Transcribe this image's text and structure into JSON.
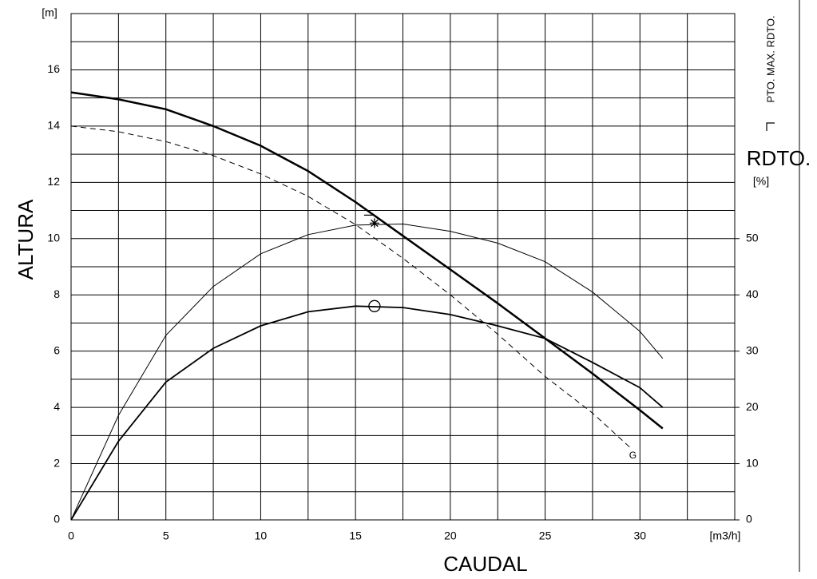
{
  "chart_data": {
    "type": "line",
    "xlabel": "CAUDAL",
    "xunit": "[m3/h]",
    "ylabel": "ALTURA",
    "yunit": "[m]",
    "y2label": "RDTO.",
    "y2unit": "[%]",
    "legend_text": "PTO. MAX. RDTO.",
    "xlim": [
      0,
      35
    ],
    "xticks": [
      0,
      5,
      10,
      15,
      20,
      25,
      30
    ],
    "ylim": [
      0,
      18
    ],
    "yticks": [
      0,
      2,
      4,
      6,
      8,
      10,
      12,
      14,
      16
    ],
    "y2lim": [
      0,
      90
    ],
    "y2ticks": [
      0,
      10,
      20,
      30,
      40,
      50
    ],
    "xgridlines": [
      2.5,
      7.5,
      12.5,
      17.5,
      22.5,
      27.5,
      32.5,
      35
    ],
    "ygridlines": [
      1,
      3,
      5,
      7,
      9,
      11,
      13,
      15,
      17,
      18
    ],
    "grid": true,
    "series": [
      {
        "color": "#000000",
        "width": 2.5,
        "dashed": false,
        "axis": "y",
        "x": [
          0,
          2.5,
          5,
          7.5,
          10,
          12.5,
          15,
          17.5,
          20,
          22.5,
          25,
          27.5,
          30,
          31.2
        ],
        "values": [
          15.2,
          14.95,
          14.6,
          14.0,
          13.3,
          12.4,
          11.3,
          10.1,
          8.9,
          7.7,
          6.45,
          5.2,
          3.9,
          3.25
        ]
      },
      {
        "color": "#000000",
        "width": 1,
        "dashed": true,
        "axis": "y",
        "label": "G",
        "x": [
          0,
          2.5,
          5,
          7.5,
          10,
          12.5,
          15,
          17.5,
          20,
          22.5,
          25,
          27.5,
          29.6
        ],
        "values": [
          14.0,
          13.8,
          13.45,
          12.95,
          12.3,
          11.5,
          10.5,
          9.3,
          8.0,
          6.6,
          5.1,
          3.8,
          2.5
        ]
      },
      {
        "color": "#000000",
        "width": 1,
        "dashed": false,
        "axis": "y2",
        "x": [
          0,
          2.5,
          5,
          7.5,
          10,
          12.5,
          15,
          17.5,
          20,
          22.5,
          25,
          27.5,
          30,
          31.2
        ],
        "values": [
          0,
          18.6,
          32.8,
          41.5,
          47.3,
          50.7,
          52.4,
          52.6,
          51.3,
          49.2,
          45.9,
          40.5,
          33.5,
          28.7
        ]
      },
      {
        "color": "#000000",
        "width": 1.8,
        "dashed": false,
        "axis": "y",
        "x": [
          0,
          2.5,
          5,
          7.5,
          10,
          12.5,
          15,
          17.5,
          20,
          22.5,
          25,
          27.5,
          30,
          31.2
        ],
        "values": [
          0,
          2.8,
          4.9,
          6.1,
          6.9,
          7.4,
          7.6,
          7.55,
          7.3,
          6.9,
          6.45,
          5.6,
          4.7,
          4.0
        ]
      }
    ],
    "points": [
      {
        "x": 16,
        "y": 10.55,
        "symbol": "star"
      },
      {
        "x": 16,
        "y": 7.6,
        "symbol": "circle"
      }
    ]
  }
}
